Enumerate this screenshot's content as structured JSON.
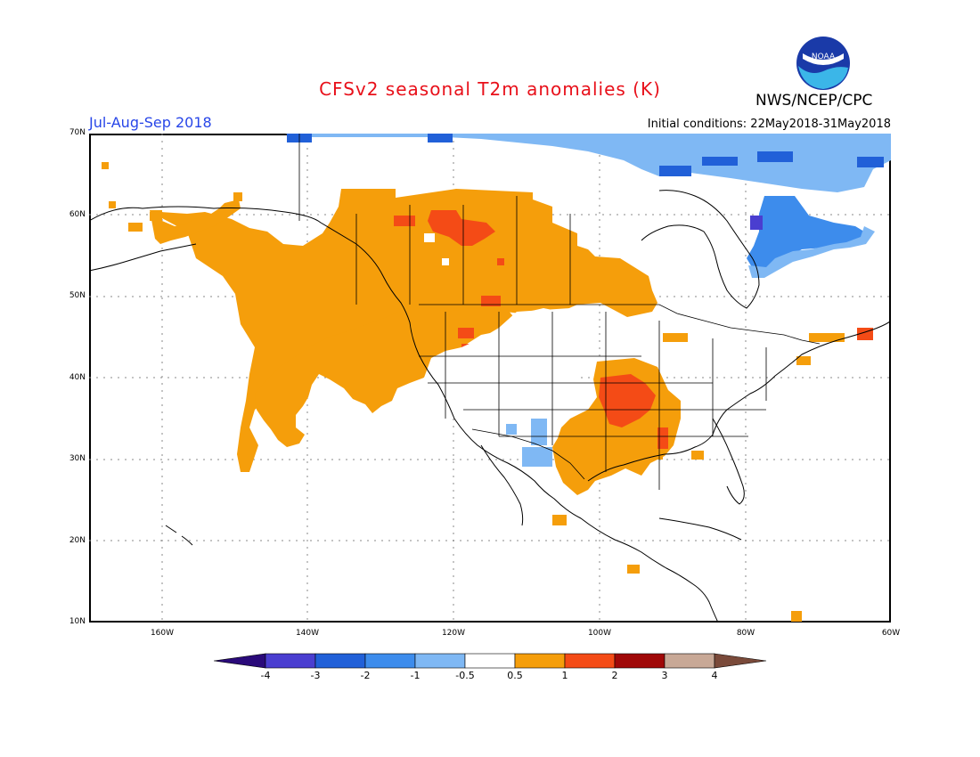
{
  "title": "CFSv2 seasonal T2m anomalies (K)",
  "agency": "NWS/NCEP/CPC",
  "logo_text": "NOAA",
  "period": "Jul-Aug-Sep 2018",
  "initial_conditions": "Initial conditions: 22May2018-31May2018",
  "colors": {
    "title": "#e8101a",
    "period": "#2846e8",
    "below_4": "#2a0a7a",
    "m4_m3": "#4a3ed0",
    "m3_m2": "#2160d8",
    "m2_m1": "#3d8cec",
    "m1_m05": "#7fb8f4",
    "neutral": "#ffffff",
    "p05_p1": "#f59e0b",
    "p1_p2": "#f44b16",
    "p2_p3": "#a00808",
    "p3_p4": "#c8a896",
    "above_4": "#7a4a3a"
  },
  "lat_labels": [
    "70N",
    "60N",
    "50N",
    "40N",
    "30N",
    "20N",
    "10N"
  ],
  "lon_labels": [
    "160W",
    "140W",
    "120W",
    "100W",
    "80W",
    "60W"
  ],
  "colorbar_labels": [
    "-4",
    "-3",
    "-2",
    "-1",
    "-0.5",
    "0.5",
    "1",
    "2",
    "3",
    "4"
  ]
}
